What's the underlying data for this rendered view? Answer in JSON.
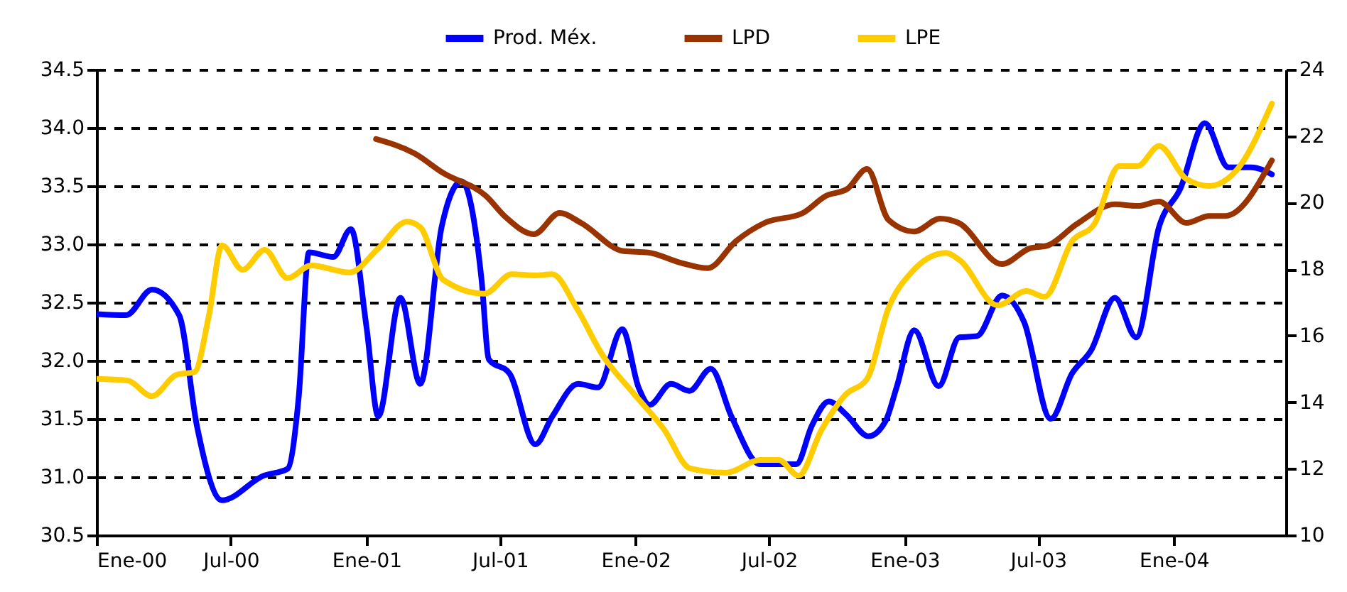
{
  "chart_data": {
    "type": "line",
    "legend": "top",
    "grid": "y",
    "line_style": "solid",
    "xlim": [
      "2000-01-01",
      "2004-06-01"
    ],
    "xticks": [
      {
        "value": "2000-01-01",
        "label": "Ene-00"
      },
      {
        "value": "2000-07-01",
        "label": "Jul-00"
      },
      {
        "value": "2001-01-01",
        "label": "Ene-01"
      },
      {
        "value": "2001-07-01",
        "label": "Jul-01"
      },
      {
        "value": "2002-01-01",
        "label": "Ene-02"
      },
      {
        "value": "2002-07-01",
        "label": "Jul-02"
      },
      {
        "value": "2003-01-01",
        "label": "Ene-03"
      },
      {
        "value": "2003-07-01",
        "label": "Jul-03"
      },
      {
        "value": "2004-01-01",
        "label": "Ene-04"
      }
    ],
    "ylim": [
      30.5,
      34.5
    ],
    "yticks": [
      30.5,
      {
        "value": 31,
        "label": "31.0"
      },
      31.5,
      {
        "value": 32,
        "label": "32.0"
      },
      32.5,
      {
        "value": 33,
        "label": "33.0"
      },
      33.5,
      {
        "value": 34,
        "label": "34.0"
      },
      34.5
    ],
    "y2lim": [
      10,
      24
    ],
    "y2ticks": [
      10,
      12,
      14,
      16,
      18,
      20,
      22,
      24
    ],
    "series": [
      {
        "name": "Prod. Méx.",
        "color": "#0000ff",
        "x": [
          "2000-01-01",
          "2000-02-10",
          "2000-03-16",
          "2000-04-22",
          "2000-05-16",
          "2000-06-19",
          "2000-08-14",
          "2000-09-16",
          "2000-10-01",
          "2000-10-15",
          "2000-11-17",
          "2000-12-11",
          "2001-01-01",
          "2001-01-17",
          "2001-02-16",
          "2001-03-15",
          "2001-04-13",
          "2001-05-10",
          "2001-06-06",
          "2001-06-16",
          "2001-07-14",
          "2001-08-18",
          "2001-09-10",
          "2001-10-15",
          "2001-11-11",
          "2001-12-14",
          "2002-01-05",
          "2002-01-20",
          "2002-02-18",
          "2002-03-15",
          "2002-04-13",
          "2002-05-11",
          "2002-06-19",
          "2002-08-07",
          "2002-08-28",
          "2002-09-20",
          "2002-10-13",
          "2002-11-13",
          "2002-12-06",
          "2002-12-21",
          "2003-01-14",
          "2003-02-16",
          "2003-03-16",
          "2003-04-09",
          "2003-05-13",
          "2003-06-12",
          "2003-07-18",
          "2003-08-16",
          "2003-09-11",
          "2003-10-13",
          "2003-11-11",
          "2003-12-12",
          "2004-01-10",
          "2004-02-12",
          "2004-03-15",
          "2004-04-15",
          "2004-05-13"
        ],
        "values": [
          32.4,
          32.39,
          32.61,
          32.39,
          31.44,
          30.8,
          31.01,
          31.07,
          31.68,
          32.93,
          32.89,
          33.13,
          32.29,
          31.52,
          32.54,
          31.8,
          33.15,
          33.54,
          32.7,
          32.01,
          31.89,
          31.28,
          31.52,
          31.8,
          31.77,
          32.27,
          31.77,
          31.62,
          31.8,
          31.74,
          31.93,
          31.52,
          31.11,
          31.11,
          31.44,
          31.65,
          31.54,
          31.35,
          31.48,
          31.77,
          32.26,
          31.78,
          32.2,
          32.21,
          32.56,
          32.33,
          31.5,
          31.89,
          32.09,
          32.54,
          32.2,
          33.15,
          33.48,
          34.04,
          33.66,
          33.66,
          33.6
        ]
      },
      {
        "name": "LPD",
        "color": "#993300",
        "axis": "y2",
        "x": [
          "2001-01-14",
          "2001-03-07",
          "2001-04-15",
          "2001-06-12",
          "2001-07-09",
          "2001-08-16",
          "2001-09-20",
          "2001-10-19",
          "2001-12-16",
          "2002-01-18",
          "2002-03-02",
          "2002-04-09",
          "2002-05-17",
          "2002-06-25",
          "2002-08-16",
          "2002-09-16",
          "2002-10-15",
          "2002-11-11",
          "2002-12-10",
          "2003-01-14",
          "2003-02-18",
          "2003-03-15",
          "2003-05-13",
          "2003-06-19",
          "2003-07-14",
          "2003-08-22",
          "2003-10-13",
          "2003-11-13",
          "2003-12-12",
          "2004-01-18",
          "2004-02-18",
          "2004-03-11",
          "2004-05-13"
        ],
        "values": [
          21.91,
          21.48,
          20.89,
          20.2,
          19.56,
          19.05,
          19.69,
          19.39,
          18.54,
          18.5,
          18.2,
          18.03,
          18.84,
          19.39,
          19.69,
          20.2,
          20.41,
          21.01,
          19.48,
          19.13,
          19.52,
          19.39,
          18.15,
          18.62,
          18.71,
          19.35,
          19.95,
          19.9,
          20.03,
          19.39,
          19.6,
          19.6,
          21.27
        ]
      },
      {
        "name": "LPE",
        "color": "#ffcc00",
        "axis": "y2",
        "x": [
          "2000-01-01",
          "2000-02-12",
          "2000-03-16",
          "2000-04-18",
          "2000-05-13",
          "2000-06-01",
          "2000-06-19",
          "2000-07-17",
          "2000-08-16",
          "2000-09-16",
          "2000-10-18",
          "2000-12-09",
          "2001-01-17",
          "2001-02-25",
          "2001-03-15",
          "2001-04-15",
          "2001-06-10",
          "2001-07-17",
          "2001-08-18",
          "2001-09-10",
          "2001-10-13",
          "2001-11-17",
          "2001-12-29",
          "2002-02-08",
          "2002-03-16",
          "2002-05-04",
          "2002-06-19",
          "2002-07-14",
          "2002-08-10",
          "2002-09-10",
          "2002-10-13",
          "2002-11-11",
          "2002-12-10",
          "2003-01-10",
          "2003-02-26",
          "2003-03-16",
          "2003-05-07",
          "2003-06-15",
          "2003-07-10",
          "2003-08-16",
          "2003-09-15",
          "2003-10-19",
          "2003-11-13",
          "2003-12-12",
          "2004-01-18",
          "2004-02-18",
          "2004-03-26",
          "2004-05-13"
        ],
        "values": [
          14.7,
          14.65,
          14.18,
          14.82,
          14.91,
          16.57,
          18.71,
          17.98,
          18.58,
          17.73,
          18.11,
          17.9,
          18.62,
          19.43,
          19.26,
          17.68,
          17.26,
          17.85,
          17.81,
          17.85,
          16.83,
          15.42,
          14.27,
          13.2,
          12.01,
          11.88,
          12.26,
          12.26,
          11.79,
          13.16,
          14.23,
          14.7,
          16.83,
          17.9,
          18.49,
          18.28,
          16.91,
          17.34,
          17.17,
          18.84,
          19.35,
          21.1,
          21.1,
          21.7,
          20.71,
          20.5,
          20.97,
          22.98
        ]
      }
    ]
  }
}
